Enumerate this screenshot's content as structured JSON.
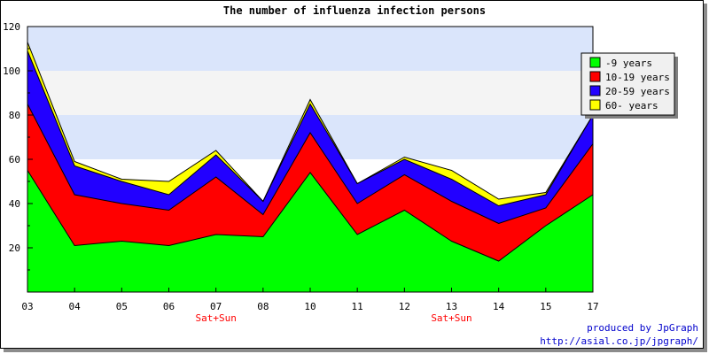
{
  "chart_data": {
    "type": "area",
    "stacked": true,
    "title": "The number of influenza infection persons",
    "x": [
      "03",
      "04",
      "05",
      "06",
      "07",
      "08",
      "10",
      "11",
      "12",
      "13",
      "14",
      "15",
      "17"
    ],
    "ylim": [
      0,
      120
    ],
    "yticks": [
      20,
      40,
      60,
      80,
      100,
      120
    ],
    "series": [
      {
        "name": "-9 years",
        "color": "#00ff00",
        "values": [
          55,
          21,
          23,
          21,
          26,
          25,
          54,
          26,
          37,
          23,
          14,
          30,
          44
        ]
      },
      {
        "name": "10-19 years",
        "color": "#ff0000",
        "values": [
          30,
          23,
          17,
          16,
          26,
          10,
          18,
          14,
          16,
          18,
          17,
          8,
          23
        ]
      },
      {
        "name": "20-59 years",
        "color": "#2200ff",
        "values": [
          24,
          13,
          10,
          7,
          10,
          6,
          13,
          9,
          7,
          10,
          8,
          6,
          13
        ]
      },
      {
        "name": "60- years",
        "color": "#ffff00",
        "values": [
          4,
          2,
          1,
          6,
          2,
          0,
          2,
          0,
          1,
          4,
          3,
          1,
          0
        ]
      }
    ],
    "bands": [
      {
        "from": 100,
        "to": 120,
        "color": "#dae5fb"
      },
      {
        "from": 80,
        "to": 100,
        "color": "#f4f4f4"
      },
      {
        "from": 60,
        "to": 80,
        "color": "#dae5fb"
      }
    ],
    "annotations": [
      {
        "x": "07",
        "text": "Sat+Sun",
        "color": "#ff0000"
      },
      {
        "x": "13",
        "text": "Sat+Sun",
        "color": "#ff0000"
      }
    ],
    "legend_position": "top-right",
    "grid": false
  },
  "credit": {
    "line1": "produced by JpGraph",
    "line2": "http://asial.co.jp/jpgraph/",
    "color": "#0000cc"
  }
}
